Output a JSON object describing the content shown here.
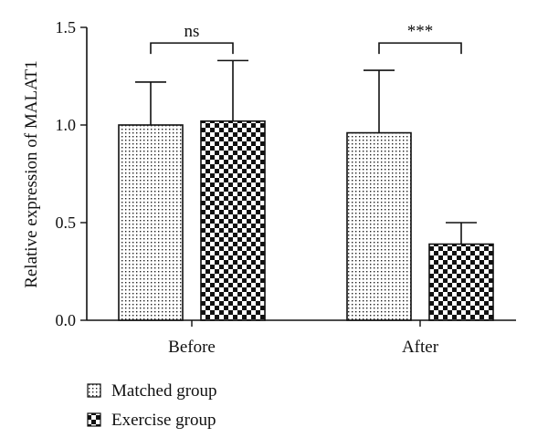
{
  "chart_data": {
    "type": "bar",
    "title": "",
    "xlabel": "",
    "ylabel": "Relative expression of MALAT1",
    "ylim": [
      0,
      1.5
    ],
    "yticks": [
      "0.0",
      "0.5",
      "1.0",
      "1.5"
    ],
    "categories": [
      "Before",
      "After"
    ],
    "series": [
      {
        "name": "Matched group",
        "values": [
          1.0,
          0.96
        ],
        "error": [
          0.22,
          0.32
        ],
        "pattern": "dots"
      },
      {
        "name": "Exercise group",
        "values": [
          1.02,
          0.39
        ],
        "error": [
          0.31,
          0.11
        ],
        "pattern": "checker"
      }
    ],
    "annotations": [
      {
        "category": "Before",
        "label": "ns",
        "bracket_top": 1.42
      },
      {
        "category": "After",
        "label": "***",
        "bracket_top": 1.42
      }
    ],
    "legend": {
      "position": "bottom-left"
    },
    "grid": false
  }
}
